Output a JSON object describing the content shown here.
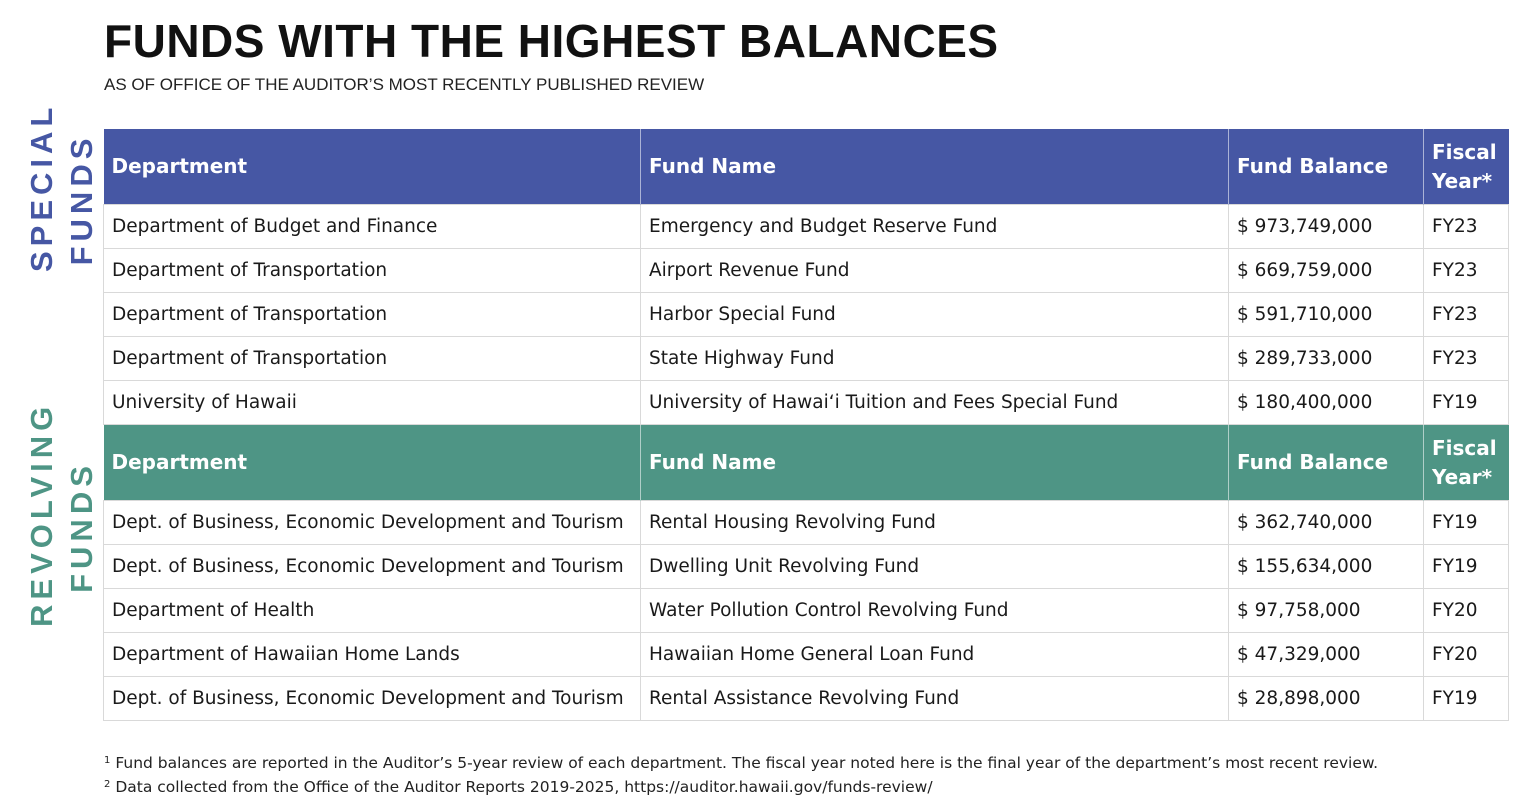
{
  "title": "FUNDS WITH THE HIGHEST BALANCES",
  "subtitle": "AS OF OFFICE OF THE AUDITOR’S MOST RECENTLY PUBLISHED REVIEW",
  "colors": {
    "special": "#4657a4",
    "revolving": "#4e9585"
  },
  "special": {
    "label_line1": "SPECIAL",
    "label_line2": "FUNDS",
    "headers": [
      "Department",
      "Fund Name",
      "Fund Balance",
      "Fiscal Year*"
    ],
    "rows": [
      [
        "Department of Budget and Finance",
        "Emergency and Budget Reserve Fund",
        "$ 973,749,000",
        "FY23"
      ],
      [
        "Department of Transportation",
        "Airport Revenue Fund",
        "$ 669,759,000",
        "FY23"
      ],
      [
        "Department of Transportation",
        "Harbor Special Fund",
        "$ 591,710,000",
        "FY23"
      ],
      [
        "Department of Transportation",
        "State Highway Fund",
        "$ 289,733,000",
        "FY23"
      ],
      [
        "University of Hawaii",
        "University of Hawaiʻi Tuition and Fees Special Fund",
        "$ 180,400,000",
        "FY19"
      ]
    ]
  },
  "revolving": {
    "label_line1": "REVOLVING",
    "label_line2": "FUNDS",
    "headers": [
      "Department",
      "Fund Name",
      "Fund Balance",
      "Fiscal Year*"
    ],
    "rows": [
      [
        "Dept. of Business, Economic Development and Tourism",
        "Rental Housing Revolving Fund",
        "$ 362,740,000",
        "FY19"
      ],
      [
        "Dept. of Business, Economic Development and Tourism",
        "Dwelling Unit Revolving Fund",
        "$ 155,634,000",
        "FY19"
      ],
      [
        "Department of Health",
        "Water Pollution Control Revolving Fund",
        "$ 97,758,000",
        "FY20"
      ],
      [
        "Department of Hawaiian Home Lands",
        "Hawaiian Home General Loan Fund",
        "$ 47,329,000",
        "FY20"
      ],
      [
        "Dept. of Business, Economic Development and Tourism",
        "Rental Assistance Revolving Fund",
        "$ 28,898,000",
        "FY19"
      ]
    ]
  },
  "footnotes": [
    {
      "mark": "1",
      "text": "Fund balances are reported in the Auditor’s 5-year review of each department. The fiscal year noted here is the final year of the department’s most recent review."
    },
    {
      "mark": "2",
      "text": "Data collected from the Office of the Auditor Reports 2019-2025, https://auditor.hawaii.gov/funds-review/"
    }
  ]
}
